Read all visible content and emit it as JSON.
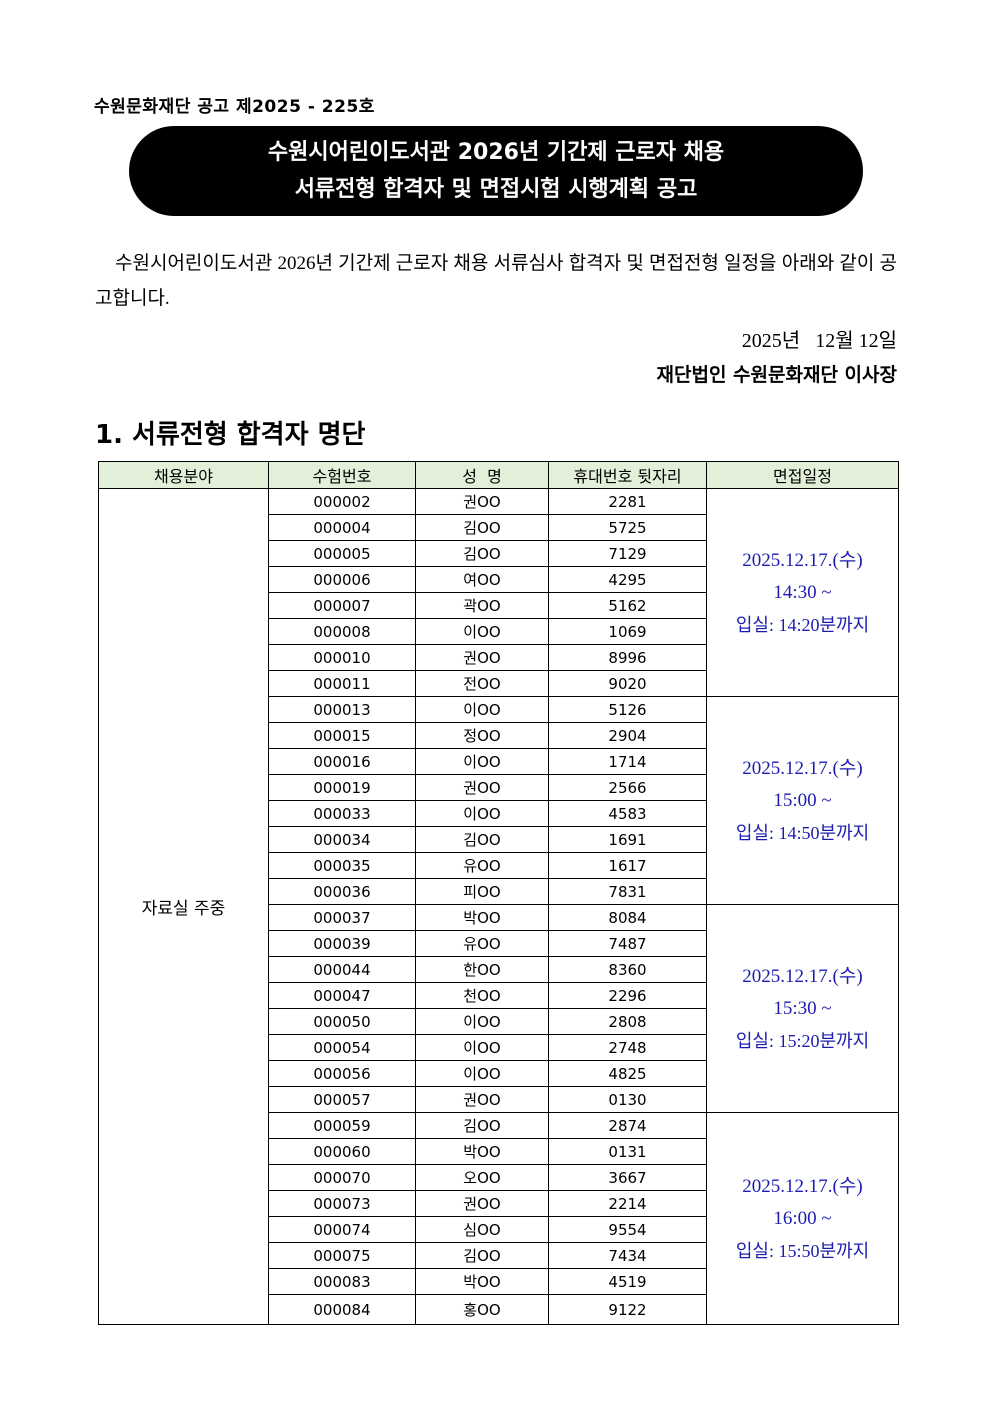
{
  "notice_number": "수원문화재단 공고 제2025 - 225호",
  "title": {
    "line1": "수원시어린이도서관 2026년 기간제 근로자 채용",
    "line2": "서류전형 합격자 및 면접시험 시행계획 공고"
  },
  "intro": "수원시어린이도서관 2026년 기간제 근로자 채용 서류심사 합격자 및 면접전형 일정을 아래와 같이 공고합니다.",
  "date": "2025년   12월 12일",
  "issuer": "재단법인 수원문화재단 이사장",
  "section_title": "1. 서류전형 합격자 명단",
  "table": {
    "header_bg": "#e2f0d9",
    "schedule_color": "#1c1cb0",
    "headers": [
      "채용분야",
      "수험번호",
      "성  명",
      "휴대번호 뒷자리",
      "면접일정"
    ],
    "category": "자료실 주중",
    "groups": [
      {
        "date": "2025.12.17.(수)",
        "time": "14:30 ~",
        "entry": "입실: 14:20분까지",
        "rows": [
          [
            "000002",
            "권OO",
            "2281"
          ],
          [
            "000004",
            "김OO",
            "5725"
          ],
          [
            "000005",
            "김OO",
            "7129"
          ],
          [
            "000006",
            "여OO",
            "4295"
          ],
          [
            "000007",
            "곽OO",
            "5162"
          ],
          [
            "000008",
            "이OO",
            "1069"
          ],
          [
            "000010",
            "권OO",
            "8996"
          ],
          [
            "000011",
            "전OO",
            "9020"
          ]
        ]
      },
      {
        "date": "2025.12.17.(수)",
        "time": "15:00 ~",
        "entry": "입실: 14:50분까지",
        "rows": [
          [
            "000013",
            "이OO",
            "5126"
          ],
          [
            "000015",
            "정OO",
            "2904"
          ],
          [
            "000016",
            "이OO",
            "1714"
          ],
          [
            "000019",
            "권OO",
            "2566"
          ],
          [
            "000033",
            "이OO",
            "4583"
          ],
          [
            "000034",
            "김OO",
            "1691"
          ],
          [
            "000035",
            "유OO",
            "1617"
          ],
          [
            "000036",
            "피OO",
            "7831"
          ]
        ]
      },
      {
        "date": "2025.12.17.(수)",
        "time": "15:30 ~",
        "entry": "입실: 15:20분까지",
        "rows": [
          [
            "000037",
            "박OO",
            "8084"
          ],
          [
            "000039",
            "유OO",
            "7487"
          ],
          [
            "000044",
            "한OO",
            "8360"
          ],
          [
            "000047",
            "천OO",
            "2296"
          ],
          [
            "000050",
            "이OO",
            "2808"
          ],
          [
            "000054",
            "이OO",
            "2748"
          ],
          [
            "000056",
            "이OO",
            "4825"
          ],
          [
            "000057",
            "권OO",
            "0130"
          ]
        ]
      },
      {
        "date": "2025.12.17.(수)",
        "time": "16:00 ~",
        "entry": "입실: 15:50분까지",
        "rows": [
          [
            "000059",
            "김OO",
            "2874"
          ],
          [
            "000060",
            "박OO",
            "0131"
          ],
          [
            "000070",
            "오OO",
            "3667"
          ],
          [
            "000073",
            "권OO",
            "2214"
          ],
          [
            "000074",
            "심OO",
            "9554"
          ],
          [
            "000075",
            "김OO",
            "7434"
          ],
          [
            "000083",
            "박OO",
            "4519"
          ],
          [
            "000084",
            "홍OO",
            "9122"
          ]
        ]
      }
    ]
  }
}
